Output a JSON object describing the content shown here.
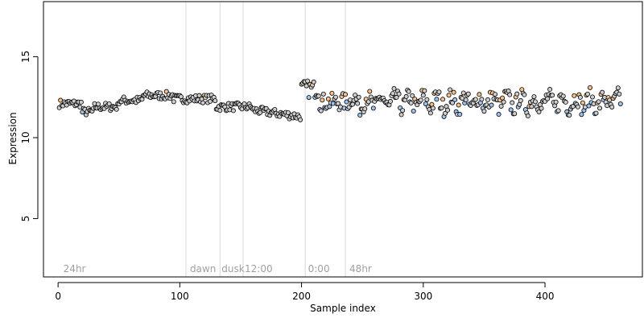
{
  "chart_data": {
    "type": "scatter",
    "title": "",
    "xlabel": "Sample index",
    "ylabel": "Expression",
    "xlim": [
      -12,
      480
    ],
    "ylim": [
      1.4,
      18.4
    ],
    "x_ticks": [
      0,
      100,
      200,
      300,
      400
    ],
    "y_ticks": [
      5,
      10,
      15
    ],
    "x_tick_labels": [
      "0",
      "100",
      "200",
      "300",
      "400"
    ],
    "y_tick_labels": [
      "5",
      "10",
      "15"
    ],
    "grid": false,
    "legend": "none",
    "vlines": [
      105,
      133,
      152,
      203,
      236
    ],
    "annotations": [
      {
        "x": 3,
        "text": "24hr"
      },
      {
        "x": 107,
        "text": "dawn"
      },
      {
        "x": 133,
        "text": "dusk"
      },
      {
        "x": 152,
        "text": "12:00"
      },
      {
        "x": 204,
        "text": "0:00"
      },
      {
        "x": 238,
        "text": "48hr"
      }
    ],
    "series": [
      {
        "x": [],
        "y": []
      }
    ],
    "colors": {
      "point_fill_default": "#cccccc",
      "point_fill_high": "#f6c08a",
      "point_fill_low": "#9ec3ee",
      "point_stroke": "#000000",
      "vline": "#d9d9d9",
      "annotation": "#a0a0a0"
    }
  }
}
